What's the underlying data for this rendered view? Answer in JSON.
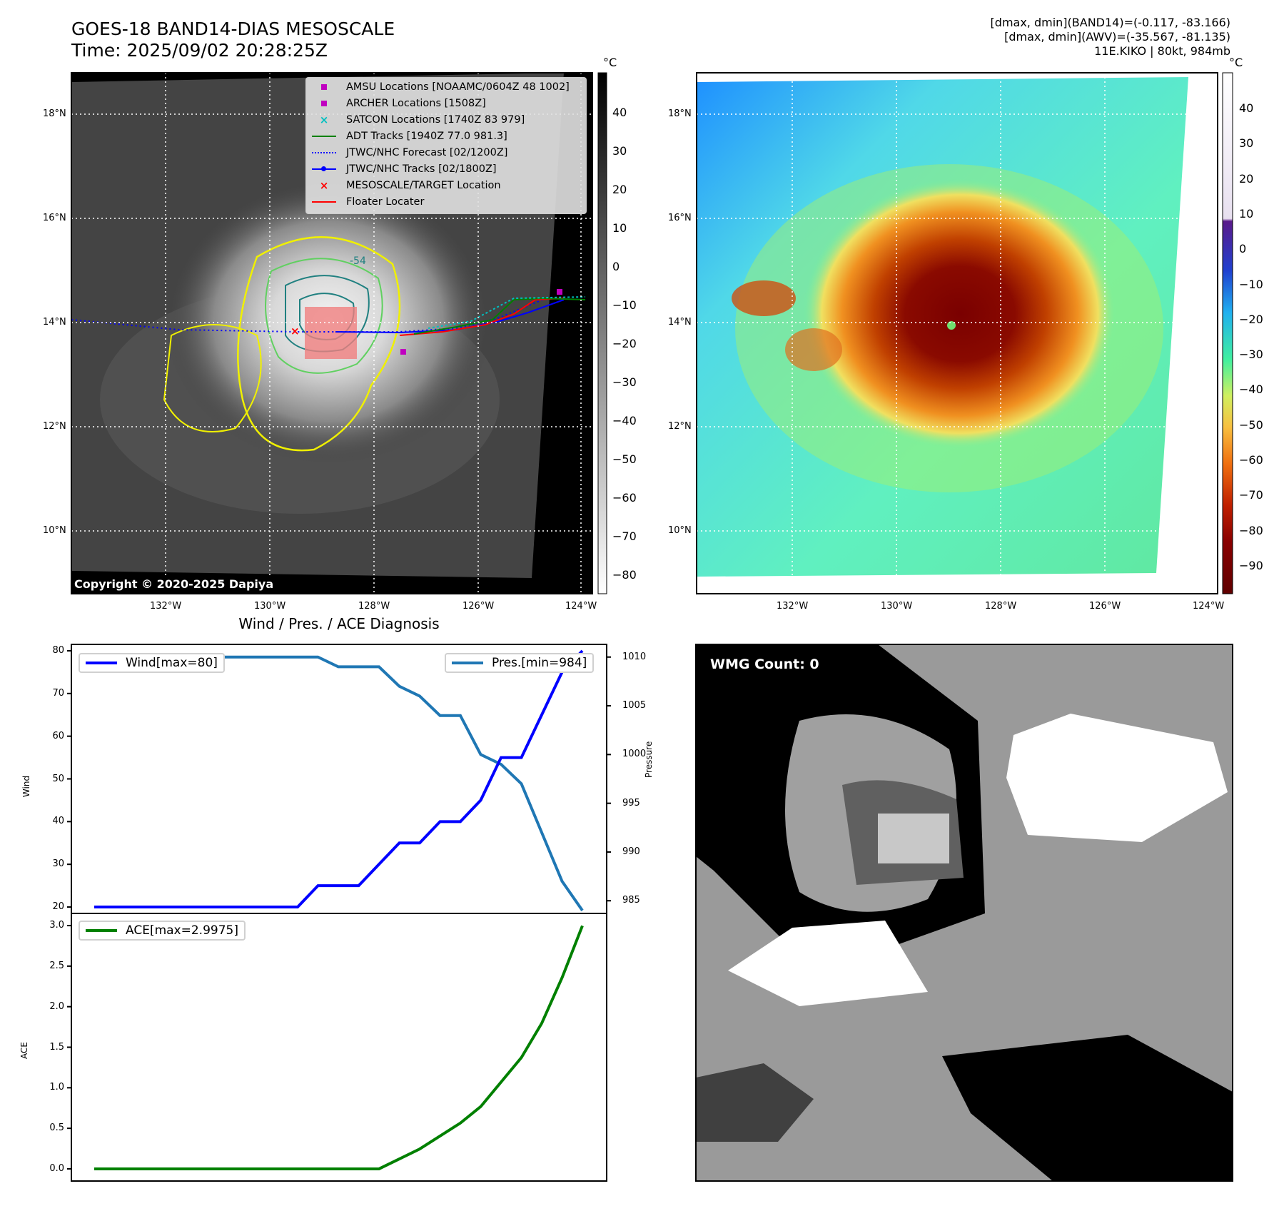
{
  "header": {
    "title_line1": "GOES-18 BAND14-DIAS MESOSCALE",
    "title_line2": "Time: 2025/09/02 20:28:25Z",
    "info_line1": "[dmax, dmin](BAND14)=(-0.117, -83.166)",
    "info_line2": "[dmax, dmin](AWV)=(-35.567, -81.135)",
    "info_line3": "11E.KIKO | 80kt, 984mb"
  },
  "map_axes": {
    "lat_labels": [
      "18°N",
      "16°N",
      "14°N",
      "12°N",
      "10°N"
    ],
    "lon_labels": [
      "132°W",
      "130°W",
      "128°W",
      "126°W",
      "124°W"
    ]
  },
  "colorbar1": {
    "unit": "°C",
    "labels": [
      "40",
      "30",
      "20",
      "10",
      "0",
      "−10",
      "−20",
      "−30",
      "−40",
      "−50",
      "−60",
      "−70",
      "−80"
    ]
  },
  "colorbar2": {
    "unit": "°C",
    "labels": [
      "40",
      "30",
      "20",
      "10",
      "0",
      "−10",
      "−20",
      "−30",
      "−40",
      "−50",
      "−60",
      "−70",
      "−80",
      "−90"
    ]
  },
  "legend": [
    {
      "label": "AMSU Locations [NOAAMC/0604Z 48 1002]",
      "icon": "square-marker",
      "color": "#c000c0"
    },
    {
      "label": "ARCHER Locations [1508Z]",
      "icon": "square-marker",
      "color": "#c000c0"
    },
    {
      "label": "SATCON Locations [1740Z 83 979]",
      "icon": "x-marker",
      "color": "#00c0c0"
    },
    {
      "label": "ADT Tracks [1940Z 77.0 981.3]",
      "icon": "solid-line",
      "color": "#008000"
    },
    {
      "label": "JTWC/NHC Forecast [02/1200Z]",
      "icon": "dotted-line",
      "color": "#0000ff"
    },
    {
      "label": "JTWC/NHC Tracks [02/1800Z]",
      "icon": "line-dot",
      "color": "#0000ff"
    },
    {
      "label": "MESOSCALE/TARGET Location",
      "icon": "x-marker",
      "color": "#ff0000"
    },
    {
      "label": "Floater Locater",
      "icon": "solid-line",
      "color": "#ff0000"
    }
  ],
  "copyright": "Copyright © 2020-2025 Dapiya",
  "contour_label": "-54",
  "wmg": {
    "label": "WMG Count: 0"
  },
  "chart_data": [
    {
      "type": "line",
      "title": "Wind / Pres. / ACE Diagnosis",
      "x": [
        0,
        1,
        2,
        3,
        4,
        5,
        6,
        7,
        8,
        9,
        10,
        11,
        12,
        13,
        14,
        15,
        16,
        17,
        18,
        19,
        20,
        21,
        22,
        23,
        24
      ],
      "series": [
        {
          "name": "Wind[max=80]",
          "axis": "left",
          "color": "#0000ff",
          "values": [
            20,
            20,
            20,
            20,
            20,
            20,
            20,
            20,
            20,
            20,
            20,
            25,
            25,
            25,
            30,
            35,
            35,
            40,
            40,
            45,
            55,
            55,
            65,
            75,
            80
          ]
        },
        {
          "name": "Pres.[min=984]",
          "axis": "right",
          "color": "#1f77b4",
          "values": [
            1010,
            1010,
            1010,
            1010,
            1010,
            1010,
            1010,
            1010,
            1010,
            1010,
            1010,
            1010,
            1009,
            1009,
            1009,
            1007,
            1006,
            1004,
            1004,
            1000,
            999,
            997,
            992,
            987,
            984
          ]
        }
      ],
      "ylabel": "Wind",
      "y2label": "Pressure",
      "ylim": [
        18.5,
        81.5
      ],
      "y2lim": [
        983.7,
        1011.3
      ],
      "yticks": [
        20,
        30,
        40,
        50,
        60,
        70,
        80
      ],
      "y2ticks": [
        985,
        990,
        995,
        1000,
        1005,
        1010
      ],
      "legend_left": "Wind[max=80]",
      "legend_right": "Pres.[min=984]"
    },
    {
      "type": "line",
      "series": [
        {
          "name": "ACE[max=2.9975]",
          "color": "#008000",
          "values": [
            0,
            0,
            0,
            0,
            0,
            0,
            0,
            0,
            0,
            0,
            0,
            0,
            0,
            0,
            0,
            0.1225,
            0.245,
            0.405,
            0.565,
            0.7675,
            1.07,
            1.3725,
            1.795,
            2.3575,
            2.9975
          ]
        }
      ],
      "ylabel": "ACE",
      "ylim": [
        -0.15,
        3.15
      ],
      "yticks": [
        "0.0",
        "0.5",
        "1.0",
        "1.5",
        "2.0",
        "2.5",
        "3.0"
      ],
      "legend": "ACE[max=2.9975]"
    }
  ]
}
